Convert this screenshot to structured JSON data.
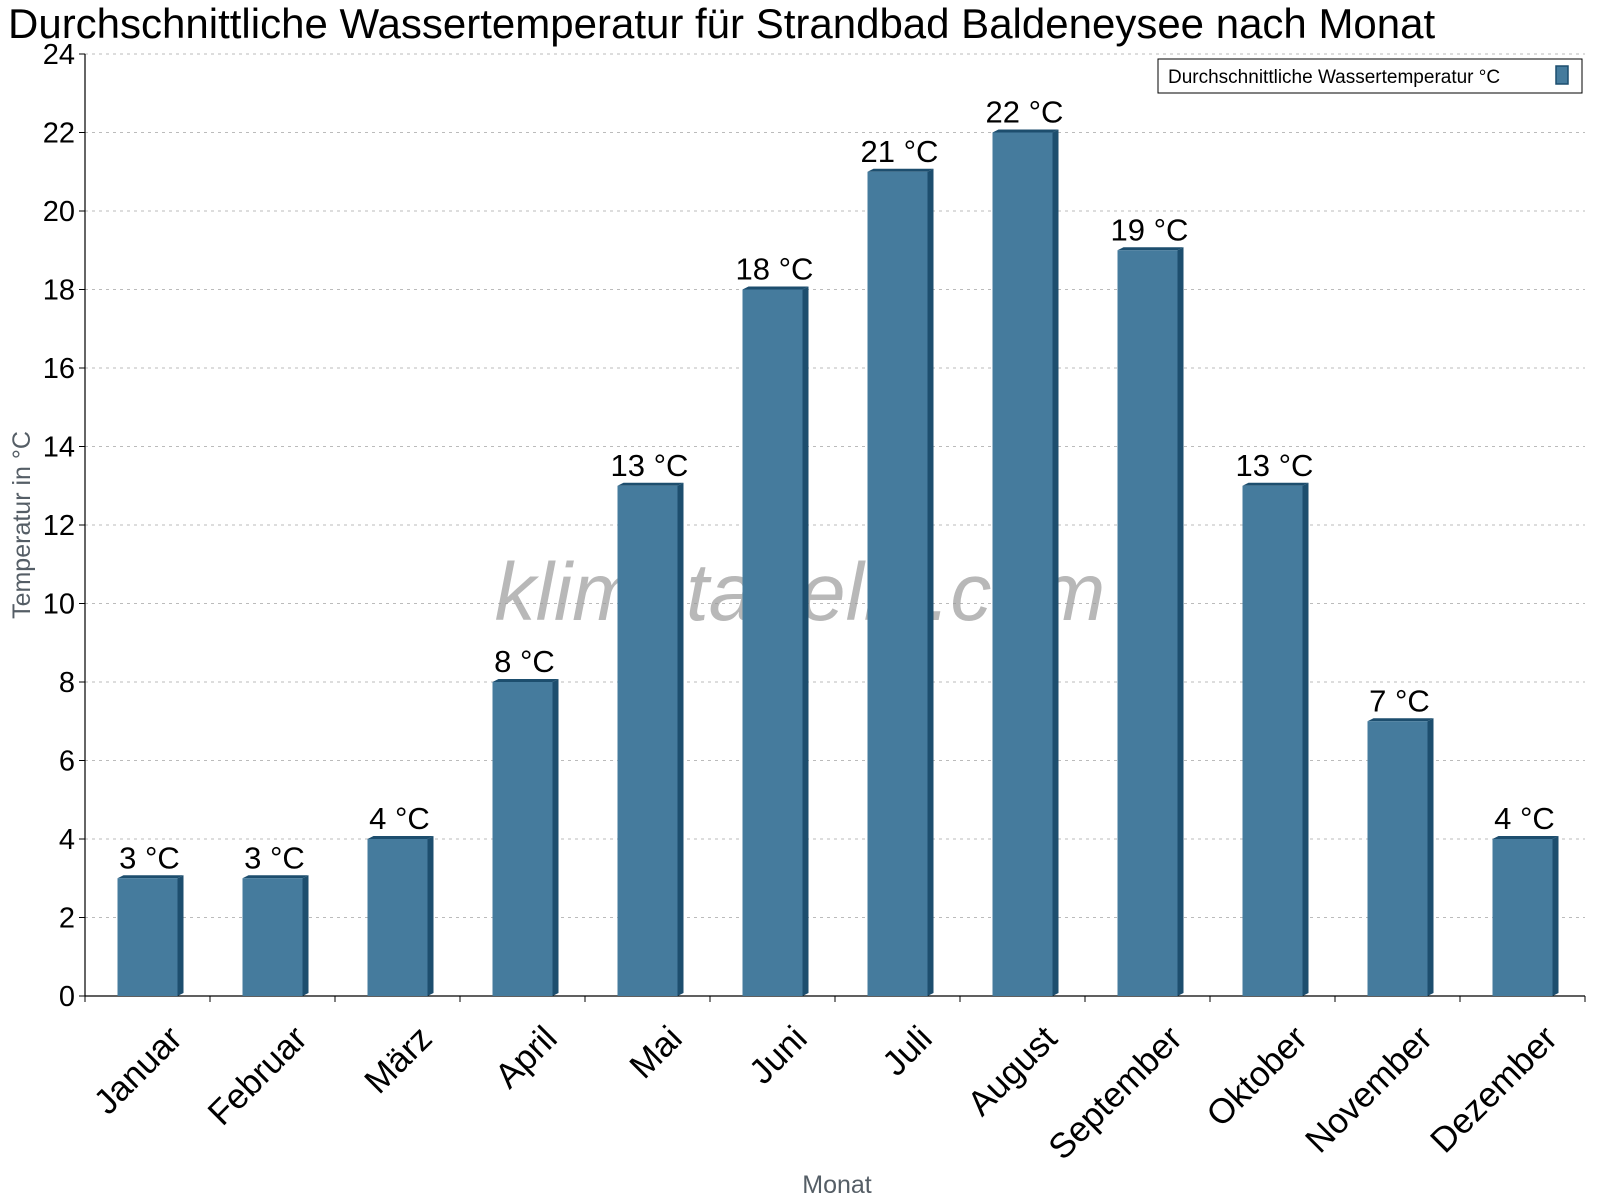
{
  "title": "Durchschnittliche Wassertemperatur für Strandbad Baldeneysee nach Monat",
  "watermark": "klimatabelle.com",
  "colors": {
    "bar": "#457b9d",
    "bar_dark": "#1d4e6e",
    "grid": "#bbbbbb"
  },
  "chart_data": {
    "type": "bar",
    "title": "Durchschnittliche Wassertemperatur für Strandbad Baldeneysee nach Monat",
    "xlabel": "Monat",
    "ylabel": "Temperatur in °C",
    "ylim": [
      0,
      24
    ],
    "yticks": [
      0,
      2,
      4,
      6,
      8,
      10,
      12,
      14,
      16,
      18,
      20,
      22,
      24
    ],
    "grid": true,
    "legend_position": "top-right",
    "unit_suffix": " °C",
    "categories": [
      "Januar",
      "Februar",
      "März",
      "April",
      "Mai",
      "Juni",
      "Juli",
      "August",
      "September",
      "Oktober",
      "November",
      "Dezember"
    ],
    "series": [
      {
        "name": "Durchschnittliche Wassertemperatur °C",
        "values": [
          3,
          3,
          4,
          8,
          13,
          18,
          21,
          22,
          19,
          13,
          7,
          4
        ]
      }
    ]
  }
}
